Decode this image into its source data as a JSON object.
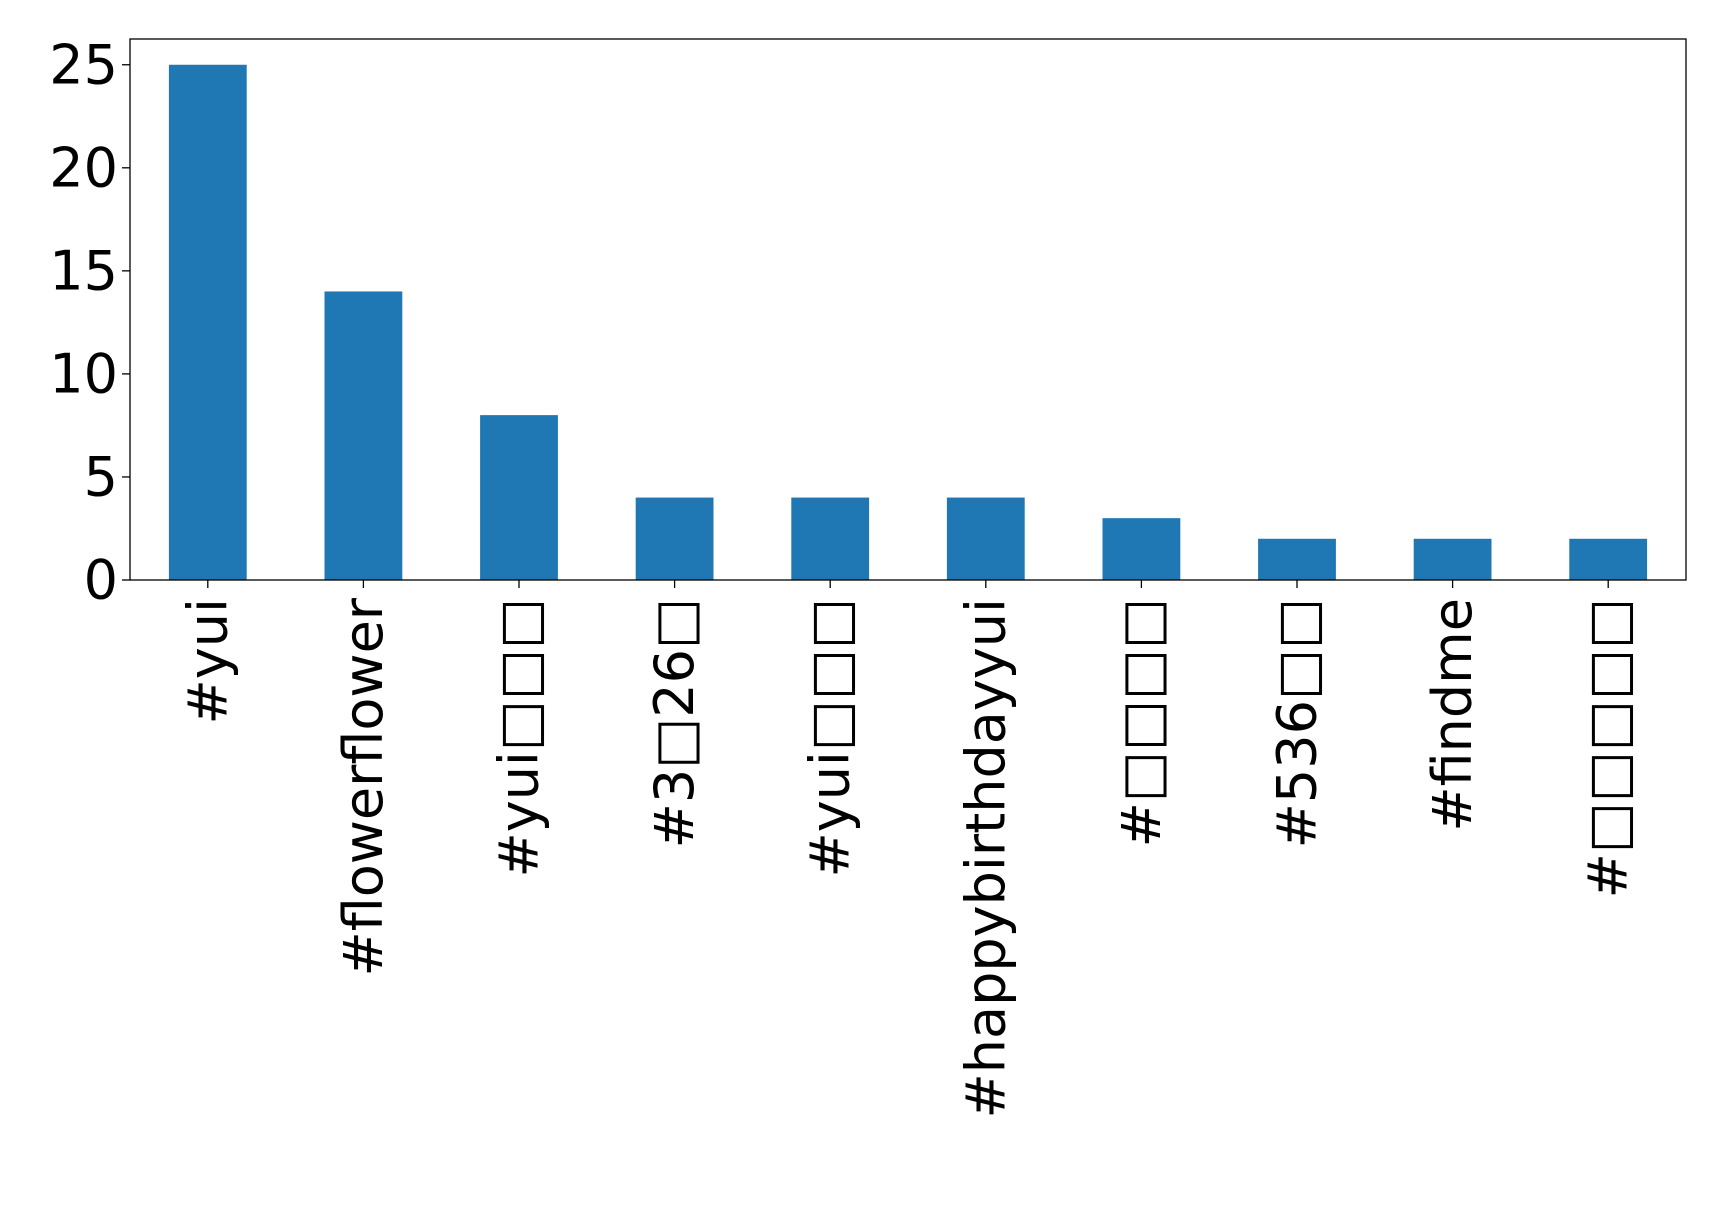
{
  "chart_data": {
    "type": "bar",
    "title": "",
    "xlabel": "",
    "ylabel": "",
    "categories": [
      "#yui",
      "#flowerflower",
      "#yui□□□",
      "#3□26□",
      "#yui□□□",
      "#happybirthdayyui",
      "#□□□□",
      "#536□□",
      "#findme",
      "#□□□□□"
    ],
    "values": [
      25,
      14,
      8,
      4,
      4,
      4,
      3,
      2,
      2,
      2
    ],
    "ylim": [
      0,
      26.25
    ],
    "yticks": [
      0,
      5,
      10,
      15,
      20,
      25
    ],
    "bar_color": "#1f77b4",
    "grid": false,
    "legend": "none"
  }
}
